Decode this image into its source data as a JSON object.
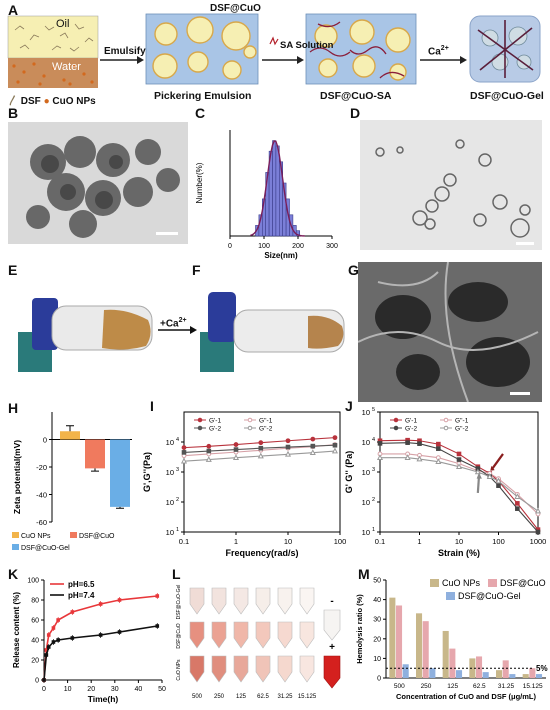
{
  "panels": {
    "A": "A",
    "B": "B",
    "C": "C",
    "D": "D",
    "E": "E",
    "F": "F",
    "G": "G",
    "H": "H",
    "I": "I",
    "J": "J",
    "K": "K",
    "L": "L",
    "M": "M"
  },
  "schematic": {
    "oil": "Oil",
    "water": "Water",
    "emulsify": "Emulsify",
    "dsf_at_cuo": "DSF@CuO",
    "sa_solution": "SA Solution",
    "ca": "Ca",
    "ca_sup": "2+",
    "legend_dsf": "DSF",
    "legend_cuo": "CuO NPs",
    "pickering": "Pickering Emulsion",
    "dsf_cuo_sa": "DSF@CuO-SA",
    "dsf_cuo_gel": "DSF@CuO-Gel"
  },
  "photo": {
    "ca_label": "+Ca",
    "ca_sup": "2+"
  },
  "lanes": {
    "row1": "DSF@CuO-Gel",
    "row2": "DSF@CuO",
    "row3": "CuO NPs",
    "neg": "-",
    "pos": "+",
    "conc": [
      "500",
      "250",
      "125",
      "62.5",
      "31.25",
      "15.125"
    ]
  },
  "chart_data": [
    {
      "panel": "C",
      "type": "bar",
      "xlabel": "Size(nm)",
      "ylabel": "Number(%)",
      "xticks": [
        "0",
        "100",
        "200",
        "300"
      ],
      "bins_x": [
        80,
        90,
        100,
        110,
        120,
        130,
        140,
        150,
        160,
        170,
        180,
        190,
        200
      ],
      "values": [
        0.02,
        0.04,
        0.07,
        0.12,
        0.16,
        0.18,
        0.17,
        0.14,
        0.1,
        0.07,
        0.04,
        0.02,
        0.01
      ],
      "xlim": [
        0,
        300
      ],
      "ylim": [
        0,
        0.2
      ]
    },
    {
      "panel": "H",
      "type": "bar",
      "ylabel": "Zeta potential(mV)",
      "yticks": [
        "0",
        "-20",
        "-40",
        "-60"
      ],
      "ylim": [
        -60,
        20
      ],
      "series": [
        {
          "name": "CuO NPs",
          "value": 6,
          "err": 4,
          "color": "#f2b44a"
        },
        {
          "name": "DSF@CuO",
          "value": -21,
          "err": 2,
          "color": "#f07a5e"
        },
        {
          "name": "DSF@CuO-Gel",
          "value": -49,
          "err": 1,
          "color": "#6aaee6"
        }
      ]
    },
    {
      "panel": "I",
      "type": "line",
      "xlabel": "Frequency(rad/s)",
      "ylabel": "G',G''(Pa)",
      "xscale": "log",
      "yscale": "log",
      "xlim": [
        0.1,
        100
      ],
      "ylim": [
        10,
        100000
      ],
      "xticks": [
        "0.1",
        "1",
        "10",
        "100"
      ],
      "yticks": [
        "10",
        "10",
        "10",
        "10"
      ],
      "yticks_exp": [
        "1",
        "2",
        "3",
        "4"
      ],
      "series": [
        {
          "name": "G'-1",
          "color": "#b8323c",
          "marker": "circle-filled",
          "x": [
            0.1,
            0.3,
            1,
            3,
            10,
            30,
            80
          ],
          "y": [
            6500,
            7200,
            8200,
            9500,
            11000,
            12500,
            14000
          ]
        },
        {
          "name": "G''-1",
          "color": "#d6a0a6",
          "marker": "circle-open",
          "x": [
            0.1,
            0.3,
            1,
            3,
            10,
            30,
            80
          ],
          "y": [
            3500,
            4000,
            4600,
            5300,
            6200,
            7000,
            8200
          ]
        },
        {
          "name": "G'-2",
          "color": "#555555",
          "marker": "square-filled",
          "x": [
            0.1,
            0.3,
            1,
            3,
            10,
            30,
            80
          ],
          "y": [
            4500,
            5000,
            5600,
            6200,
            6800,
            7300,
            7800
          ]
        },
        {
          "name": "G''-2",
          "color": "#999999",
          "marker": "triangle-open",
          "x": [
            0.1,
            0.3,
            1,
            3,
            10,
            30,
            80
          ],
          "y": [
            2300,
            2600,
            3000,
            3400,
            3900,
            4400,
            5000
          ]
        }
      ]
    },
    {
      "panel": "J",
      "type": "line",
      "xlabel": "Strain (%)",
      "ylabel": "G' G'' (Pa)",
      "xscale": "log",
      "yscale": "log",
      "xlim": [
        0.1,
        1000
      ],
      "ylim": [
        10,
        100000
      ],
      "xticks": [
        "0.1",
        "1",
        "10",
        "100",
        "1000"
      ],
      "yticks": [
        "10",
        "10",
        "10",
        "10",
        "10"
      ],
      "yticks_exp": [
        "1",
        "2",
        "3",
        "4",
        "5"
      ],
      "series": [
        {
          "name": "G'-1",
          "color": "#b8323c",
          "marker": "square-filled",
          "x": [
            0.1,
            0.5,
            1,
            3,
            10,
            30,
            60,
            100,
            300,
            1000
          ],
          "y": [
            11000,
            11500,
            11000,
            8500,
            4000,
            1500,
            900,
            500,
            90,
            12
          ]
        },
        {
          "name": "G''-1",
          "color": "#d6a0a6",
          "marker": "circle-open",
          "x": [
            0.1,
            0.5,
            1,
            3,
            10,
            30,
            60,
            100,
            300,
            1000
          ],
          "y": [
            4000,
            4000,
            3600,
            3000,
            1900,
            1100,
            900,
            600,
            180,
            40
          ]
        },
        {
          "name": "G'-2",
          "color": "#444444",
          "marker": "square-filled",
          "x": [
            0.1,
            0.5,
            1,
            3,
            10,
            30,
            60,
            100,
            300,
            1000
          ],
          "y": [
            9000,
            9500,
            8800,
            6000,
            2600,
            1300,
            700,
            350,
            60,
            10
          ]
        },
        {
          "name": "G''-2",
          "color": "#999999",
          "marker": "triangle-open",
          "x": [
            0.1,
            0.5,
            1,
            3,
            10,
            30,
            60,
            100,
            300,
            1000
          ],
          "y": [
            3000,
            3000,
            2700,
            2200,
            1500,
            1000,
            700,
            500,
            150,
            50
          ]
        }
      ]
    },
    {
      "panel": "K",
      "type": "line",
      "xlabel": "Time(h)",
      "ylabel": "Release content (%)",
      "xlim": [
        0,
        50
      ],
      "ylim": [
        0,
        100
      ],
      "xticks": [
        "0",
        "10",
        "20",
        "30",
        "40",
        "50"
      ],
      "yticks": [
        "0",
        "20",
        "40",
        "60",
        "80",
        "100"
      ],
      "series": [
        {
          "name": "pH=6.5",
          "color": "#e8373a",
          "x": [
            0,
            1,
            2,
            4,
            6,
            12,
            24,
            32,
            48
          ],
          "y": [
            0,
            30,
            45,
            52,
            60,
            68,
            76,
            80,
            84
          ]
        },
        {
          "name": "pH=7.4",
          "color": "#111111",
          "x": [
            0,
            1,
            2,
            4,
            6,
            12,
            24,
            32,
            48
          ],
          "y": [
            0,
            25,
            33,
            38,
            40,
            42,
            45,
            48,
            54
          ]
        }
      ]
    },
    {
      "panel": "M",
      "type": "bar",
      "xlabel": "Concentration of CuO and DSF (μg/mL)",
      "ylabel": "Hemolysis ratio (%)",
      "categories": [
        "500",
        "250",
        "125",
        "62.5",
        "31.25",
        "15.125"
      ],
      "ylim": [
        0,
        50
      ],
      "yticks": [
        "0",
        "10",
        "20",
        "30",
        "40",
        "50"
      ],
      "threshold": 5,
      "threshold_label": "5%",
      "series": [
        {
          "name": "CuO NPs",
          "color": "#c8b78a",
          "values": [
            41,
            33,
            24,
            10,
            4,
            2
          ]
        },
        {
          "name": "DSF@CuO",
          "color": "#e6a7ad",
          "values": [
            37,
            29,
            15,
            11,
            9,
            5
          ]
        },
        {
          "name": "DSF@CuO-Gel",
          "color": "#8fb0de",
          "values": [
            7,
            5,
            4,
            3,
            2,
            2
          ]
        }
      ]
    }
  ]
}
